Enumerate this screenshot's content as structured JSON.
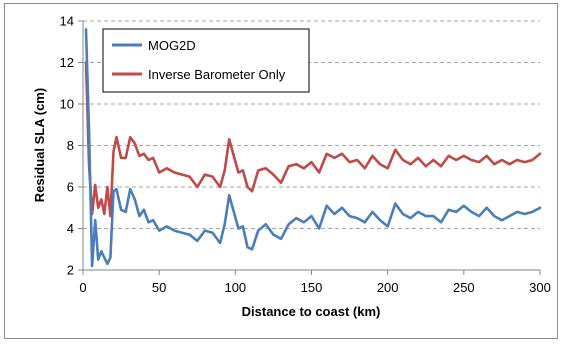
{
  "chart_data": {
    "type": "line",
    "title": "",
    "xlabel": "Distance to coast (km)",
    "ylabel": "Residual SLA (cm)",
    "xlim": [
      0,
      300
    ],
    "ylim": [
      2,
      14
    ],
    "xticks": [
      0,
      50,
      100,
      150,
      200,
      250,
      300
    ],
    "yticks": [
      2,
      4,
      6,
      8,
      10,
      12,
      14
    ],
    "grid": "horizontal dashed",
    "legend": "top-left",
    "x": [
      2,
      4,
      6,
      8,
      10,
      12,
      14,
      16,
      18,
      20,
      22,
      25,
      28,
      31,
      34,
      37,
      40,
      43,
      46,
      50,
      55,
      60,
      65,
      70,
      75,
      80,
      85,
      90,
      93,
      96,
      99,
      102,
      105,
      108,
      111,
      115,
      120,
      125,
      130,
      135,
      140,
      145,
      150,
      155,
      160,
      165,
      170,
      175,
      180,
      185,
      190,
      195,
      200,
      205,
      210,
      215,
      220,
      225,
      230,
      235,
      240,
      245,
      250,
      255,
      260,
      265,
      270,
      275,
      280,
      285,
      290,
      295,
      300
    ],
    "series": [
      {
        "name": "MOG2D",
        "color": "#4a7ebb",
        "values": [
          13.6,
          8.6,
          2.2,
          4.4,
          2.5,
          2.9,
          2.6,
          2.3,
          2.6,
          5.8,
          5.9,
          4.9,
          4.8,
          5.9,
          5.4,
          4.6,
          4.9,
          4.3,
          4.4,
          3.9,
          4.1,
          3.9,
          3.8,
          3.7,
          3.4,
          3.9,
          3.8,
          3.3,
          4.2,
          5.6,
          4.8,
          4.0,
          4.1,
          3.1,
          3.0,
          3.9,
          4.2,
          3.7,
          3.5,
          4.2,
          4.5,
          4.3,
          4.6,
          4.0,
          5.1,
          4.7,
          5.0,
          4.6,
          4.5,
          4.3,
          4.8,
          4.4,
          4.1,
          5.2,
          4.7,
          4.5,
          4.8,
          4.6,
          4.6,
          4.3,
          4.9,
          4.8,
          5.1,
          4.8,
          4.6,
          5.0,
          4.6,
          4.4,
          4.6,
          4.8,
          4.7,
          4.8,
          5.0
        ]
      },
      {
        "name": "Inverse Barometer Only",
        "color": "#be4b48",
        "values": [
          12.0,
          7.0,
          4.7,
          6.1,
          5.0,
          5.4,
          4.7,
          6.0,
          4.6,
          7.7,
          8.4,
          7.4,
          7.4,
          8.4,
          8.1,
          7.5,
          7.6,
          7.3,
          7.4,
          6.7,
          6.9,
          6.7,
          6.6,
          6.5,
          6.0,
          6.6,
          6.5,
          6.0,
          6.8,
          8.3,
          7.5,
          6.7,
          6.8,
          6.0,
          5.8,
          6.8,
          6.9,
          6.6,
          6.2,
          7.0,
          7.1,
          6.9,
          7.2,
          6.7,
          7.6,
          7.4,
          7.6,
          7.2,
          7.3,
          6.9,
          7.5,
          7.1,
          6.9,
          7.8,
          7.3,
          7.1,
          7.4,
          7.0,
          7.3,
          7.0,
          7.5,
          7.3,
          7.5,
          7.3,
          7.2,
          7.5,
          7.1,
          7.3,
          7.1,
          7.3,
          7.2,
          7.3,
          7.6
        ]
      }
    ]
  }
}
